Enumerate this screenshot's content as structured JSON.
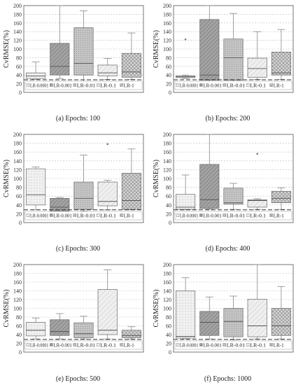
{
  "figure": {
    "ylabel": "CvRMSE(%)",
    "y_ticks": [
      0,
      20,
      40,
      60,
      80,
      100,
      120,
      140,
      160,
      180,
      200
    ],
    "legend": [
      "LR-0.0001",
      "LR-0.001",
      "LR-0.01",
      "LR-0.1",
      "LR-1"
    ],
    "colors": {
      "box_light": "#ececec",
      "box_dark": "#9a9a9a",
      "box_mid": "#cfcfcf",
      "outline": "#666666"
    }
  },
  "chart_data": [
    {
      "type": "box",
      "caption": "(a) Epochs: 100",
      "ylim": [
        0,
        200
      ],
      "ref_line": 29,
      "categories": [
        "LR-0.0001",
        "LR-0.001",
        "LR-0.01",
        "LR-0.1",
        "LR-1"
      ],
      "boxes": [
        {
          "whisker_low": 30,
          "q1": 32,
          "median": 38,
          "q3": 45,
          "whisker_high": 70,
          "outliers": []
        },
        {
          "whisker_low": 32,
          "q1": 40,
          "median": 60,
          "q3": 113,
          "whisker_high": 200,
          "outliers": []
        },
        {
          "whisker_low": 20,
          "q1": 40,
          "median": 67,
          "q3": 149,
          "whisker_high": 188,
          "outliers": []
        },
        {
          "whisker_low": 30,
          "q1": 38,
          "median": 45,
          "q3": 63,
          "whisker_high": 78,
          "outliers": []
        },
        {
          "whisker_low": 30,
          "q1": 35,
          "median": 47,
          "q3": 90,
          "whisker_high": 137,
          "outliers": []
        }
      ]
    },
    {
      "type": "box",
      "caption": "(b) Epochs: 200",
      "ylim": [
        0,
        200
      ],
      "ref_line": 29,
      "categories": [
        "LR-0.0001",
        "LR-0.001",
        "LR-0.01",
        "LR-0.1",
        "LR-1"
      ],
      "boxes": [
        {
          "whisker_low": 32,
          "q1": 34,
          "median": 36,
          "q3": 38,
          "whisker_high": 40,
          "outliers": [
            122
          ]
        },
        {
          "whisker_low": 22,
          "q1": 28,
          "median": 40,
          "q3": 168,
          "whisker_high": 200,
          "outliers": []
        },
        {
          "whisker_low": 20,
          "q1": 28,
          "median": 80,
          "q3": 123,
          "whisker_high": 182,
          "outliers": []
        },
        {
          "whisker_low": 30,
          "q1": 35,
          "median": 55,
          "q3": 79,
          "whisker_high": 140,
          "outliers": []
        },
        {
          "whisker_low": 30,
          "q1": 40,
          "median": 45,
          "q3": 93,
          "whisker_high": 145,
          "outliers": []
        }
      ]
    },
    {
      "type": "box",
      "caption": "(c) Epochs: 300",
      "ylim": [
        0,
        200
      ],
      "ref_line": 29,
      "categories": [
        "LR-0.0001",
        "LR-0.001",
        "LR-0.01",
        "LR-0.1",
        "LR-1"
      ],
      "boxes": [
        {
          "whisker_low": 29,
          "q1": 40,
          "median": 63,
          "q3": 122,
          "whisker_high": 126,
          "outliers": []
        },
        {
          "whisker_low": 22,
          "q1": 26,
          "median": 35,
          "q3": 55,
          "whisker_high": 57,
          "outliers": []
        },
        {
          "whisker_low": 26,
          "q1": 30,
          "median": 55,
          "q3": 92,
          "whisker_high": 153,
          "outliers": []
        },
        {
          "whisker_low": 29,
          "q1": 38,
          "median": 48,
          "q3": 92,
          "whisker_high": 96,
          "outliers": [
            178
          ]
        },
        {
          "whisker_low": 29,
          "q1": 30,
          "median": 50,
          "q3": 112,
          "whisker_high": 167,
          "outliers": []
        }
      ]
    },
    {
      "type": "box",
      "caption": "(d) Epochs: 400",
      "ylim": [
        0,
        200
      ],
      "ref_line": 29,
      "categories": [
        "LR-0.0001",
        "LR-0.001",
        "LR-0.01",
        "LR-0.1",
        "LR-1"
      ],
      "boxes": [
        {
          "whisker_low": 29,
          "q1": 30,
          "median": 35,
          "q3": 64,
          "whisker_high": 108,
          "outliers": []
        },
        {
          "whisker_low": 30,
          "q1": 32,
          "median": 52,
          "q3": 132,
          "whisker_high": 200,
          "outliers": []
        },
        {
          "whisker_low": 30,
          "q1": 42,
          "median": 45,
          "q3": 78,
          "whisker_high": 89,
          "outliers": []
        },
        {
          "whisker_low": 30,
          "q1": 35,
          "median": 50,
          "q3": 52,
          "whisker_high": 54,
          "outliers": [
            156
          ]
        },
        {
          "whisker_low": 30,
          "q1": 45,
          "median": 55,
          "q3": 71,
          "whisker_high": 79,
          "outliers": []
        }
      ]
    },
    {
      "type": "box",
      "caption": "(e) Epochs: 500",
      "ylim": [
        0,
        200
      ],
      "ref_line": 29,
      "categories": [
        "LR-0.0001",
        "LR-0.001",
        "LR-0.01",
        "LR-0.1",
        "LR-1"
      ],
      "boxes": [
        {
          "whisker_low": 30,
          "q1": 37,
          "median": 50,
          "q3": 68,
          "whisker_high": 78,
          "outliers": []
        },
        {
          "whisker_low": 30,
          "q1": 38,
          "median": 47,
          "q3": 74,
          "whisker_high": 88,
          "outliers": []
        },
        {
          "whisker_low": 30,
          "q1": 33,
          "median": 42,
          "q3": 67,
          "whisker_high": 82,
          "outliers": []
        },
        {
          "whisker_low": 30,
          "q1": 40,
          "median": 50,
          "q3": 143,
          "whisker_high": 188,
          "outliers": []
        },
        {
          "whisker_low": 30,
          "q1": 33,
          "median": 38,
          "q3": 50,
          "whisker_high": 58,
          "outliers": []
        }
      ]
    },
    {
      "type": "box",
      "caption": "(f) Epochs: 1000",
      "ylim": [
        0,
        200
      ],
      "ref_line": 29,
      "categories": [
        "LR-0.0001",
        "LR-0.001",
        "LR-0.01",
        "LR-0.1",
        "LR-1"
      ],
      "boxes": [
        {
          "whisker_low": 30,
          "q1": 32,
          "median": 36,
          "q3": 140,
          "whisker_high": 170,
          "outliers": []
        },
        {
          "whisker_low": 30,
          "q1": 38,
          "median": 68,
          "q3": 93,
          "whisker_high": 126,
          "outliers": []
        },
        {
          "whisker_low": 28,
          "q1": 35,
          "median": 70,
          "q3": 100,
          "whisker_high": 128,
          "outliers": []
        },
        {
          "whisker_low": 30,
          "q1": 35,
          "median": 60,
          "q3": 121,
          "whisker_high": 200,
          "outliers": []
        },
        {
          "whisker_low": 30,
          "q1": 38,
          "median": 60,
          "q3": 100,
          "whisker_high": 150,
          "outliers": []
        }
      ]
    }
  ]
}
